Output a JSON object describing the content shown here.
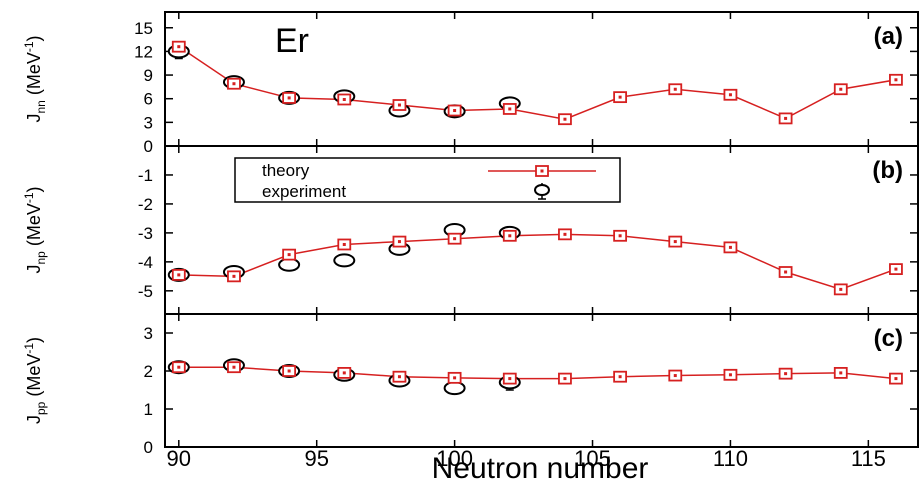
{
  "chart_data": {
    "type": "scatter",
    "element": "Er",
    "xlabel": "Neutron number",
    "xlim": [
      89.5,
      116.8
    ],
    "xticks": [
      90,
      95,
      100,
      105,
      110,
      115
    ],
    "legend": {
      "placement": "top-left of panel (b)",
      "entries": [
        {
          "label": "theory",
          "style": "red line with open squares"
        },
        {
          "label": "experiment",
          "style": "open circles with error bars"
        }
      ]
    },
    "colors": {
      "theory": "#d62020",
      "experiment": "#000000"
    },
    "panels": [
      {
        "id": "a",
        "label": "(a)",
        "ylabel_main": "J",
        "ylabel_sub": "nn",
        "ylabel_unit": " (MeV",
        "ylabel_sup": "-1",
        "ylabel_close": ")",
        "ylim": [
          0,
          17
        ],
        "yticks": [
          0,
          3,
          6,
          9,
          12,
          15
        ],
        "yticklabels": [
          "0",
          "3",
          "6",
          "9",
          "12",
          "15"
        ],
        "theory": {
          "x": [
            90,
            92,
            94,
            96,
            98,
            100,
            102,
            104,
            106,
            108,
            110,
            112,
            114,
            116
          ],
          "y": [
            12.6,
            7.9,
            6.1,
            5.9,
            5.2,
            4.5,
            4.7,
            3.4,
            6.2,
            7.2,
            6.5,
            3.5,
            7.2,
            8.4
          ]
        },
        "experiment": {
          "x": [
            90,
            92,
            94,
            96,
            98,
            100,
            102
          ],
          "y": [
            12.0,
            8.1,
            6.1,
            6.3,
            4.5,
            4.4,
            5.4
          ],
          "err": [
            0.9,
            0.3,
            0.2,
            0.2,
            0.2,
            0.2,
            0.3
          ]
        }
      },
      {
        "id": "b",
        "label": "(b)",
        "ylabel_main": "J",
        "ylabel_sub": "np",
        "ylabel_unit": " (MeV",
        "ylabel_sup": "-1",
        "ylabel_close": ")",
        "ylim": [
          -5.8,
          0
        ],
        "yticks": [
          -5,
          -4,
          -3,
          -2,
          -1
        ],
        "yticklabels": [
          "-5",
          "-4",
          "-3",
          "-2",
          "-1"
        ],
        "theory": {
          "x": [
            90,
            92,
            94,
            96,
            98,
            100,
            102,
            104,
            106,
            108,
            110,
            112,
            114,
            116
          ],
          "y": [
            -4.45,
            -4.5,
            -3.75,
            -3.4,
            -3.3,
            -3.2,
            -3.1,
            -3.05,
            -3.1,
            -3.3,
            -3.5,
            -4.35,
            -4.95,
            -4.25
          ]
        },
        "experiment": {
          "x": [
            90,
            92,
            94,
            96,
            98,
            100,
            102
          ],
          "y": [
            -4.45,
            -4.35,
            -4.1,
            -3.95,
            -3.55,
            -2.9,
            -3.0
          ],
          "err": [
            0.15,
            0.1,
            0.05,
            0.05,
            0.05,
            0.05,
            0.05
          ]
        }
      },
      {
        "id": "c",
        "label": "(c)",
        "ylabel_main": "J",
        "ylabel_sub": "pp",
        "ylabel_unit": " (MeV",
        "ylabel_sup": "-1",
        "ylabel_close": ")",
        "ylim": [
          0,
          3.5
        ],
        "yticks": [
          0,
          1,
          2,
          3
        ],
        "yticklabels": [
          "0",
          "1",
          "2",
          "3"
        ],
        "theory": {
          "x": [
            90,
            92,
            94,
            96,
            98,
            100,
            102,
            104,
            106,
            108,
            110,
            112,
            114,
            116
          ],
          "y": [
            2.1,
            2.1,
            2.0,
            1.95,
            1.85,
            1.82,
            1.8,
            1.8,
            1.85,
            1.88,
            1.9,
            1.93,
            1.95,
            1.8
          ]
        },
        "experiment": {
          "x": [
            90,
            92,
            94,
            96,
            98,
            100,
            102
          ],
          "y": [
            2.1,
            2.15,
            2.0,
            1.9,
            1.75,
            1.55,
            1.7
          ],
          "err": [
            0.05,
            0.05,
            0.05,
            0.05,
            0.05,
            0.05,
            0.2
          ]
        }
      }
    ]
  }
}
